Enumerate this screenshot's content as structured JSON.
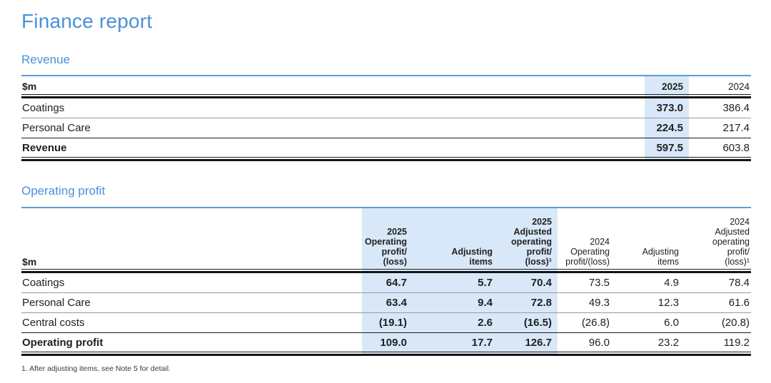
{
  "page": {
    "title": "Finance report",
    "footnote": "1. After adjusting items, see Note 5 for detail."
  },
  "colors": {
    "heading_blue": "#4a90d9",
    "table_top_rule": "#5b9bd5",
    "highlight_band": "#d9e8f8"
  },
  "revenue_section": {
    "heading": "Revenue",
    "table": {
      "unit_label": "$m",
      "col_headers": [
        "2025",
        "2024"
      ],
      "rows": [
        {
          "label": "Coatings",
          "values": [
            "373.0",
            "386.4"
          ]
        },
        {
          "label": "Personal Care",
          "values": [
            "224.5",
            "217.4"
          ]
        }
      ],
      "total_row": {
        "label": "Revenue",
        "values": [
          "597.5",
          "603.8"
        ]
      }
    }
  },
  "operating_profit_section": {
    "heading": "Operating profit",
    "table": {
      "unit_label": "$m",
      "col_headers": [
        "2025\nOperating\nprofit/\n(loss)",
        "Adjusting\nitems",
        "2025\nAdjusted\noperating\nprofit/\n(loss)¹",
        "2024\nOperating\nprofit/(loss)",
        "Adjusting\nitems",
        "2024\nAdjusted\noperating\nprofit/\n(loss)¹"
      ],
      "rows": [
        {
          "label": "Coatings",
          "values": [
            "64.7",
            "5.7",
            "70.4",
            "73.5",
            "4.9",
            "78.4"
          ]
        },
        {
          "label": "Personal Care",
          "values": [
            "63.4",
            "9.4",
            "72.8",
            "49.3",
            "12.3",
            "61.6"
          ]
        },
        {
          "label": "Central costs",
          "values": [
            "(19.1)",
            "2.6",
            "(16.5)",
            "(26.8)",
            "6.0",
            "(20.8)"
          ]
        }
      ],
      "total_row": {
        "label": "Operating profit",
        "values": [
          "109.0",
          "17.7",
          "126.7",
          "96.0",
          "23.2",
          "119.2"
        ]
      }
    }
  }
}
